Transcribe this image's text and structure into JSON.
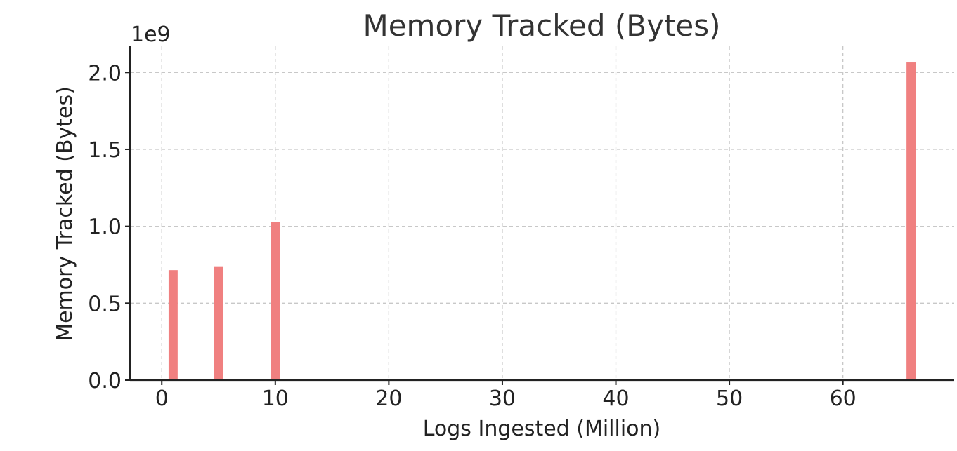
{
  "chart_data": {
    "type": "bar",
    "title": "Memory Tracked (Bytes)",
    "xlabel": "Logs Ingested (Million)",
    "ylabel": "Memory Tracked (Bytes)",
    "y_offset_label": "1e9",
    "x": [
      1,
      5,
      10,
      66
    ],
    "values": [
      715000000,
      740000000,
      1030000000,
      2065000000
    ],
    "bar_width": 0.8,
    "xlim": [
      -2.8,
      69.8
    ],
    "ylim": [
      0,
      2170000000
    ],
    "x_ticks": [
      0,
      10,
      20,
      30,
      40,
      50,
      60
    ],
    "x_tick_labels": [
      "0",
      "10",
      "20",
      "30",
      "40",
      "50",
      "60"
    ],
    "y_ticks": [
      0,
      500000000,
      1000000000,
      1500000000,
      2000000000
    ],
    "y_tick_labels": [
      "0.0",
      "0.5",
      "1.0",
      "1.5",
      "2.0"
    ],
    "grid": true,
    "bar_color": "#f08080"
  }
}
